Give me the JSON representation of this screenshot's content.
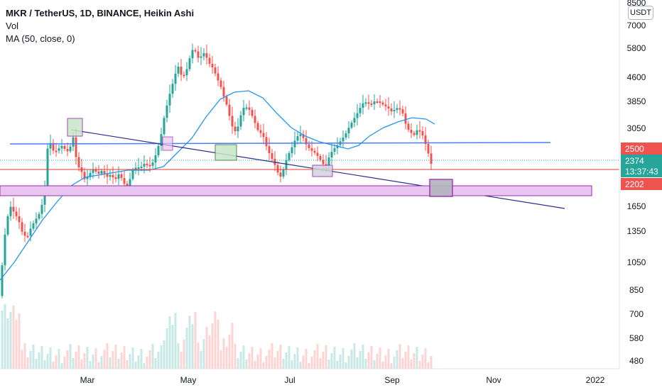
{
  "legend": {
    "title": "MKR / TetherUS, 1D, BINANCE, Heikin Ashi",
    "volume_label": "Vol",
    "ma_label": "MA (50, close, 0)"
  },
  "currency": "USDT",
  "colors": {
    "up": "#26a69a",
    "down": "#ef5350",
    "ma": "#2196f3",
    "trendline": "#2a2e8c",
    "resistance": "#4f7cf7",
    "support": "#e53935",
    "zone_fill": "#e8c6f0",
    "zone_border": "#9c27b0"
  },
  "chart_data": {
    "type": "candlestick",
    "y_scale": "log",
    "y_ticks": [
      "8500",
      "7000",
      "5800",
      "4600",
      "3850",
      "3050",
      "2500",
      "1650",
      "1350",
      "1050",
      "850",
      "700",
      "580",
      "480"
    ],
    "x_ticks": [
      "Mar",
      "May",
      "Jul",
      "Sep",
      "Nov",
      "2022"
    ],
    "price_tags": [
      {
        "label": "2500",
        "color": "#ef5350"
      },
      {
        "label": "2374",
        "color": "#26a69a"
      },
      {
        "label": "13:37:43",
        "color": "#26a69a"
      },
      {
        "label": "2202",
        "color": "#ef5350"
      }
    ],
    "series": [
      {
        "name": "MKR / TetherUS",
        "kind": "price"
      },
      {
        "name": "Vol",
        "kind": "volume"
      },
      {
        "name": "MA (50, close, 0)",
        "kind": "moving-average"
      }
    ]
  }
}
